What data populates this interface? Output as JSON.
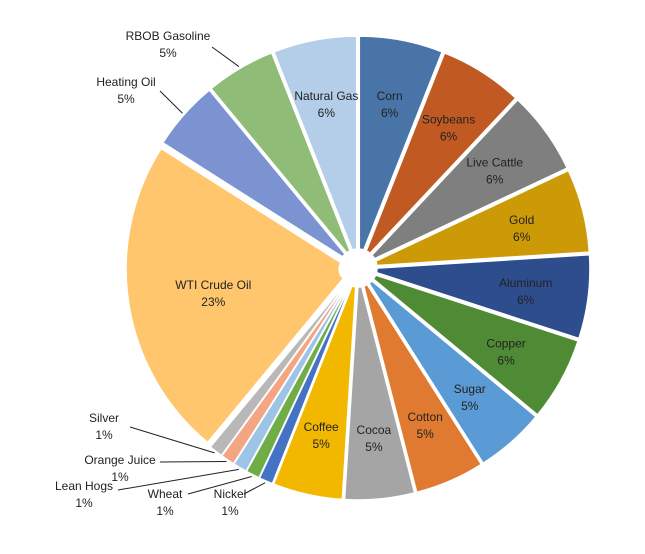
{
  "chart_data": {
    "type": "pie",
    "style": "exploded",
    "title": "",
    "slices": [
      {
        "label": "Corn",
        "value_label": "6%",
        "value": 6,
        "color": "#4874a8"
      },
      {
        "label": "Soybeans",
        "value_label": "6%",
        "value": 6,
        "color": "#c05a22"
      },
      {
        "label": "Live Cattle",
        "value_label": "6%",
        "value": 6,
        "color": "#7f7f7f"
      },
      {
        "label": "Gold",
        "value_label": "6%",
        "value": 6,
        "color": "#cc9a06"
      },
      {
        "label": "Aluminum",
        "value_label": "6%",
        "value": 6,
        "color": "#2e4d8c"
      },
      {
        "label": "Copper",
        "value_label": "6%",
        "value": 6,
        "color": "#4f8a35"
      },
      {
        "label": "Sugar",
        "value_label": "5%",
        "value": 5,
        "color": "#5b9bd5"
      },
      {
        "label": "Cotton",
        "value_label": "5%",
        "value": 5,
        "color": "#e07a30"
      },
      {
        "label": "Cocoa",
        "value_label": "5%",
        "value": 5,
        "color": "#a5a5a5"
      },
      {
        "label": "Coffee",
        "value_label": "5%",
        "value": 5,
        "color": "#f2b800"
      },
      {
        "label": "Nickel",
        "value_label": "1%",
        "value": 1,
        "color": "#4472c4"
      },
      {
        "label": "Wheat",
        "value_label": "1%",
        "value": 1,
        "color": "#70ad47"
      },
      {
        "label": "Lean Hogs",
        "value_label": "1%",
        "value": 1,
        "color": "#9dc3e6"
      },
      {
        "label": "Orange Juice",
        "value_label": "1%",
        "value": 1,
        "color": "#f4a582"
      },
      {
        "label": "Silver",
        "value_label": "1%",
        "value": 1,
        "color": "#b8b8b8"
      },
      {
        "label": "WTI Crude Oil",
        "value_label": "23%",
        "value": 23,
        "color": "#ffc66d"
      },
      {
        "label": "Heating Oil",
        "value_label": "5%",
        "value": 5,
        "color": "#7b93d1"
      },
      {
        "label": "RBOB Gasoline",
        "value_label": "5%",
        "value": 5,
        "color": "#8fbc77"
      },
      {
        "label": "Natural Gas",
        "value_label": "6%",
        "value": 6,
        "color": "#b4cde9"
      }
    ],
    "legend": "none",
    "data_labels": "category name and percentage"
  }
}
